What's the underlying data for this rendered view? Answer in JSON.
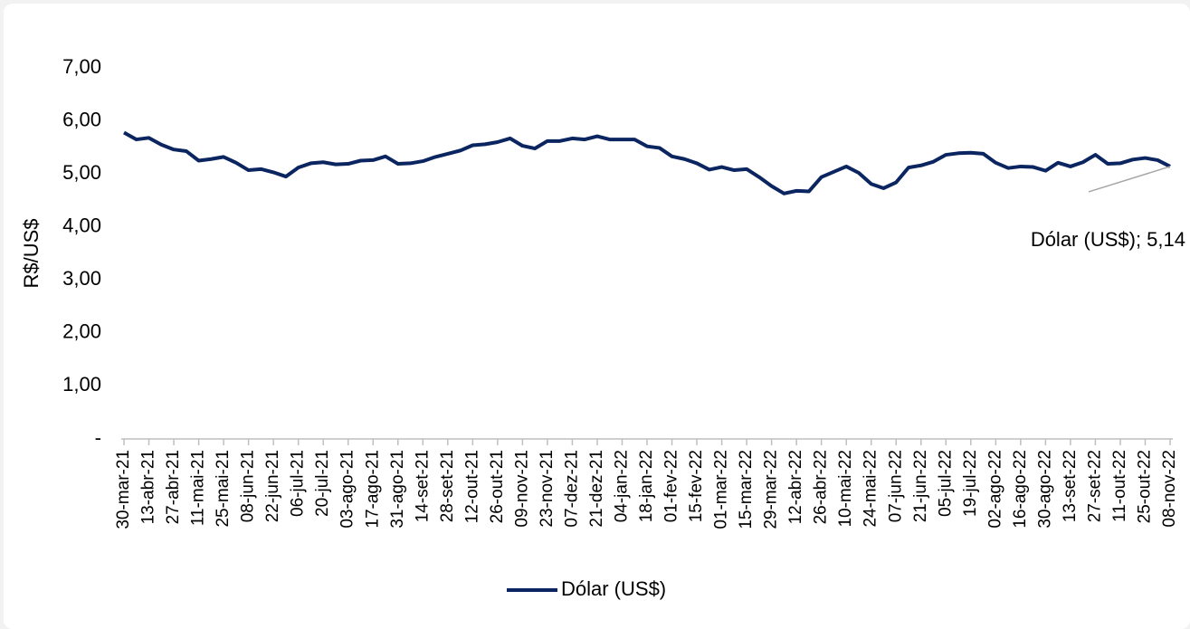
{
  "chart_data": {
    "type": "line",
    "y_label": "R$/US$",
    "categories": [
      "30-mar-21",
      null,
      "13-abr-21",
      null,
      "27-abr-21",
      null,
      "11-mai-21",
      null,
      "25-mai-21",
      null,
      "08-jun-21",
      null,
      "22-jun-21",
      null,
      "06-jul-21",
      null,
      "20-jul-21",
      null,
      "03-ago-21",
      null,
      "17-ago-21",
      null,
      "31-ago-21",
      null,
      "14-set-21",
      null,
      "28-set-21",
      null,
      "12-out-21",
      null,
      "26-out-21",
      null,
      "09-nov-21",
      null,
      "23-nov-21",
      null,
      "07-dez-21",
      null,
      "21-dez-21",
      null,
      "04-jan-22",
      null,
      "18-jan-22",
      null,
      "01-fev-22",
      null,
      "15-fev-22",
      null,
      "01-mar-22",
      null,
      "15-mar-22",
      null,
      "29-mar-22",
      null,
      "12-abr-22",
      null,
      "26-abr-22",
      null,
      "10-mai-22",
      null,
      "24-mai-22",
      null,
      "07-jun-22",
      null,
      "21-jun-22",
      null,
      "05-jul-22",
      null,
      "19-jul-22",
      null,
      "02-ago-22",
      null,
      "16-ago-22",
      null,
      "30-ago-22",
      null,
      "13-set-22",
      null,
      "27-set-22",
      null,
      "11-out-22",
      null,
      "25-out-22",
      null,
      "08-nov-22"
    ],
    "series": [
      {
        "name": "Dólar (US$)",
        "color": "#0b2560",
        "values": [
          5.78,
          5.65,
          5.68,
          5.55,
          5.46,
          5.43,
          5.25,
          5.28,
          5.32,
          5.21,
          5.07,
          5.09,
          5.03,
          4.95,
          5.12,
          5.2,
          5.22,
          5.18,
          5.19,
          5.25,
          5.26,
          5.33,
          5.19,
          5.2,
          5.24,
          5.32,
          5.38,
          5.44,
          5.54,
          5.56,
          5.6,
          5.67,
          5.53,
          5.48,
          5.62,
          5.62,
          5.67,
          5.65,
          5.71,
          5.65,
          5.65,
          5.65,
          5.52,
          5.49,
          5.33,
          5.28,
          5.2,
          5.08,
          5.13,
          5.07,
          5.09,
          4.94,
          4.77,
          4.63,
          4.68,
          4.67,
          4.94,
          5.04,
          5.14,
          5.02,
          4.81,
          4.73,
          4.84,
          5.12,
          5.16,
          5.23,
          5.36,
          5.39,
          5.4,
          5.38,
          5.21,
          5.11,
          5.14,
          5.13,
          5.06,
          5.21,
          5.14,
          5.22,
          5.36,
          5.19,
          5.2,
          5.27,
          5.3,
          5.26,
          5.14
        ],
        "value_labels": [
          null,
          null,
          null,
          null,
          null,
          null,
          null,
          null,
          null,
          null,
          null,
          null,
          null,
          null,
          null,
          null,
          null,
          null,
          null,
          null,
          null,
          null,
          null,
          null,
          null,
          null,
          null,
          null,
          null,
          null,
          null,
          null,
          null,
          null,
          null,
          null,
          null,
          null,
          null,
          null,
          null,
          null,
          null,
          null,
          null,
          null,
          null,
          null,
          null,
          null,
          null,
          null,
          null,
          null,
          null,
          null,
          null,
          null,
          null,
          null,
          null,
          null,
          null,
          null,
          null,
          null,
          null,
          null,
          null,
          null,
          null,
          null,
          null,
          null,
          null,
          null,
          null,
          null,
          null,
          null,
          null,
          null,
          null,
          null,
          "Dólar (US$); 5,14"
        ]
      }
    ],
    "ylim": [
      0,
      7
    ],
    "yticks": [
      {
        "value": 0,
        "label": "-"
      },
      {
        "value": 1,
        "label": "1,00"
      },
      {
        "value": 2,
        "label": "2,00"
      },
      {
        "value": 3,
        "label": "3,00"
      },
      {
        "value": 4,
        "label": "4,00"
      },
      {
        "value": 5,
        "label": "5,00"
      },
      {
        "value": 6,
        "label": "6,00"
      },
      {
        "value": 7,
        "label": "7,00"
      }
    ],
    "grid": false,
    "legend": "bottom"
  }
}
